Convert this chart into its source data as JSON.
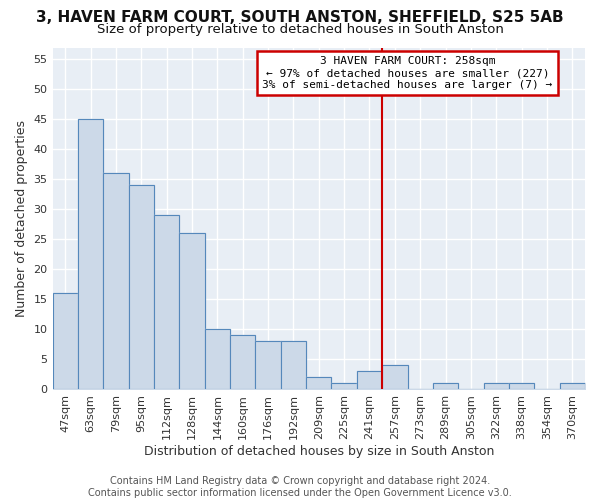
{
  "title": "3, HAVEN FARM COURT, SOUTH ANSTON, SHEFFIELD, S25 5AB",
  "subtitle": "Size of property relative to detached houses in South Anston",
  "xlabel": "Distribution of detached houses by size in South Anston",
  "ylabel": "Number of detached properties",
  "bar_labels": [
    "47sqm",
    "63sqm",
    "79sqm",
    "95sqm",
    "112sqm",
    "128sqm",
    "144sqm",
    "160sqm",
    "176sqm",
    "192sqm",
    "209sqm",
    "225sqm",
    "241sqm",
    "257sqm",
    "273sqm",
    "289sqm",
    "305sqm",
    "322sqm",
    "338sqm",
    "354sqm",
    "370sqm"
  ],
  "bar_heights": [
    16,
    45,
    36,
    34,
    29,
    26,
    10,
    9,
    8,
    8,
    2,
    1,
    3,
    4,
    0,
    1,
    0,
    1,
    1,
    0,
    1
  ],
  "bar_color": "#ccd9e8",
  "bar_edgecolor": "#5588bb",
  "vline_index": 13,
  "vline_color": "#cc0000",
  "annotation_title": "3 HAVEN FARM COURT: 258sqm",
  "annotation_line1": "← 97% of detached houses are smaller (227)",
  "annotation_line2": "3% of semi-detached houses are larger (7) →",
  "annotation_box_edgecolor": "#cc0000",
  "ylim": [
    0,
    57
  ],
  "yticks": [
    0,
    5,
    10,
    15,
    20,
    25,
    30,
    35,
    40,
    45,
    50,
    55
  ],
  "background_color": "#e8eef5",
  "grid_color": "#ffffff",
  "footer": "Contains HM Land Registry data © Crown copyright and database right 2024.\nContains public sector information licensed under the Open Government Licence v3.0.",
  "title_fontsize": 11,
  "subtitle_fontsize": 9.5,
  "xlabel_fontsize": 9,
  "ylabel_fontsize": 9,
  "tick_fontsize": 8,
  "footer_fontsize": 7
}
